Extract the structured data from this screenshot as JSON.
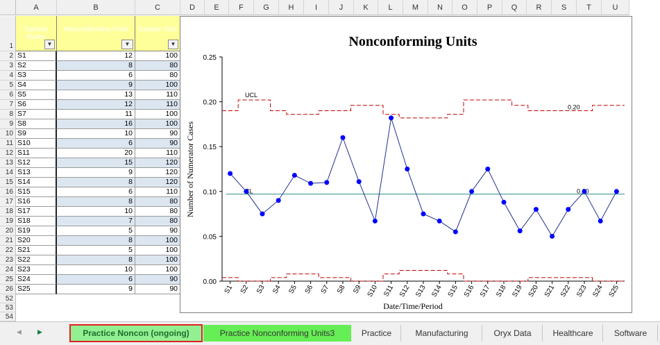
{
  "sheet": {
    "columns": [
      "A",
      "B",
      "C",
      "D",
      "E",
      "F",
      "G",
      "H",
      "I",
      "J",
      "K",
      "L",
      "M",
      "N",
      "O",
      "P",
      "Q",
      "R",
      "S",
      "T",
      "U"
    ],
    "headers": {
      "a": "Sample Name",
      "b": "Nonconforming Units",
      "c": "Sample Size"
    },
    "row_numbers": [
      "1",
      "2",
      "3",
      "4",
      "5",
      "6",
      "7",
      "8",
      "9",
      "10",
      "11",
      "12",
      "13",
      "14",
      "15",
      "16",
      "17",
      "18",
      "19",
      "20",
      "21",
      "22",
      "23",
      "24",
      "25",
      "26",
      "52",
      "53",
      "54"
    ],
    "rows": [
      {
        "name": "S1",
        "nc": "12",
        "size": "100"
      },
      {
        "name": "S2",
        "nc": "8",
        "size": "80"
      },
      {
        "name": "S3",
        "nc": "6",
        "size": "80"
      },
      {
        "name": "S4",
        "nc": "9",
        "size": "100"
      },
      {
        "name": "S5",
        "nc": "13",
        "size": "110"
      },
      {
        "name": "S6",
        "nc": "12",
        "size": "110"
      },
      {
        "name": "S7",
        "nc": "11",
        "size": "100"
      },
      {
        "name": "S8",
        "nc": "16",
        "size": "100"
      },
      {
        "name": "S9",
        "nc": "10",
        "size": "90"
      },
      {
        "name": "S10",
        "nc": "6",
        "size": "90"
      },
      {
        "name": "S11",
        "nc": "20",
        "size": "110"
      },
      {
        "name": "S12",
        "nc": "15",
        "size": "120"
      },
      {
        "name": "S13",
        "nc": "9",
        "size": "120"
      },
      {
        "name": "S14",
        "nc": "8",
        "size": "120"
      },
      {
        "name": "S15",
        "nc": "6",
        "size": "110"
      },
      {
        "name": "S16",
        "nc": "8",
        "size": "80"
      },
      {
        "name": "S17",
        "nc": "10",
        "size": "80"
      },
      {
        "name": "S18",
        "nc": "7",
        "size": "80"
      },
      {
        "name": "S19",
        "nc": "5",
        "size": "90"
      },
      {
        "name": "S20",
        "nc": "8",
        "size": "100"
      },
      {
        "name": "S21",
        "nc": "5",
        "size": "100"
      },
      {
        "name": "S22",
        "nc": "8",
        "size": "100"
      },
      {
        "name": "S23",
        "nc": "10",
        "size": "100"
      },
      {
        "name": "S24",
        "nc": "6",
        "size": "90"
      },
      {
        "name": "S25",
        "nc": "9",
        "size": "90"
      }
    ]
  },
  "chart_data": {
    "type": "line",
    "title": "Nonconforming Units",
    "xlabel": "Date/Time/Period",
    "ylabel": "Number of Numerator Cases",
    "ylim": [
      0,
      0.25
    ],
    "yticks": [
      "0.00",
      "0.05",
      "0.10",
      "0.15",
      "0.20",
      "0.25"
    ],
    "categories": [
      "S1",
      "S2",
      "S3",
      "S4",
      "S5",
      "S6",
      "S7",
      "S8",
      "S9",
      "S10",
      "S11",
      "S12",
      "S13",
      "S14",
      "S15",
      "S16",
      "S17",
      "S18",
      "S19",
      "S20",
      "S21",
      "S22",
      "S23",
      "S24",
      "S25"
    ],
    "series": [
      {
        "name": "",
        "values": [
          0.12,
          0.1,
          0.075,
          0.09,
          0.118,
          0.109,
          0.11,
          0.16,
          0.111,
          0.067,
          0.182,
          0.125,
          0.075,
          0.067,
          0.055,
          0.1,
          0.125,
          0.088,
          0.056,
          0.08,
          0.05,
          0.08,
          0.1,
          0.067,
          0.1
        ]
      }
    ],
    "cl": 0.097,
    "ucl": [
      0.19,
      0.202,
      0.202,
      0.19,
      0.186,
      0.186,
      0.19,
      0.19,
      0.196,
      0.196,
      0.186,
      0.182,
      0.182,
      0.182,
      0.186,
      0.202,
      0.202,
      0.202,
      0.196,
      0.19,
      0.19,
      0.19,
      0.19,
      0.196,
      0.196
    ],
    "lcl": [
      0.004,
      0.0,
      0.0,
      0.004,
      0.008,
      0.008,
      0.004,
      0.004,
      0.0,
      0.0,
      0.008,
      0.012,
      0.012,
      0.012,
      0.008,
      0.0,
      0.0,
      0.0,
      0.0,
      0.004,
      0.004,
      0.004,
      0.004,
      0.0,
      0.0
    ],
    "annotations": {
      "ucl_label": "UCL",
      "cl_label": "CL",
      "ucl_value": "0.20",
      "cl_value": "0.10"
    },
    "colors": {
      "points": "#0000ff",
      "line": "#1f2f8f",
      "cl": "#2e8b8b",
      "limits": "#c00000"
    },
    "grid": false
  },
  "tabs": {
    "items": [
      {
        "label": "Practice Noncon (ongoing)"
      },
      {
        "label": "Practice Nonconforming Units3"
      },
      {
        "label": "Practice"
      },
      {
        "label": "Manufacturing"
      },
      {
        "label": "Oryx Data"
      },
      {
        "label": "Healthcare"
      },
      {
        "label": "Software"
      }
    ]
  }
}
